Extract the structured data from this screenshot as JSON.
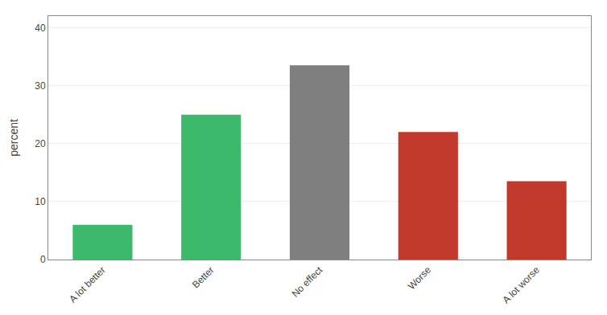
{
  "chart_data": {
    "type": "bar",
    "categories": [
      "A lot better",
      "Better",
      "No effect",
      "Worse",
      "A lot worse"
    ],
    "values": [
      6.0,
      25.0,
      33.5,
      22.0,
      13.5
    ],
    "colors": [
      "#3cb96a",
      "#3cb96a",
      "#7f7f7f",
      "#c0392b",
      "#c0392b"
    ],
    "ylabel": "percent",
    "ylim": [
      0,
      42
    ],
    "yticks": [
      0,
      10,
      20,
      30,
      40
    ],
    "grid": true
  }
}
